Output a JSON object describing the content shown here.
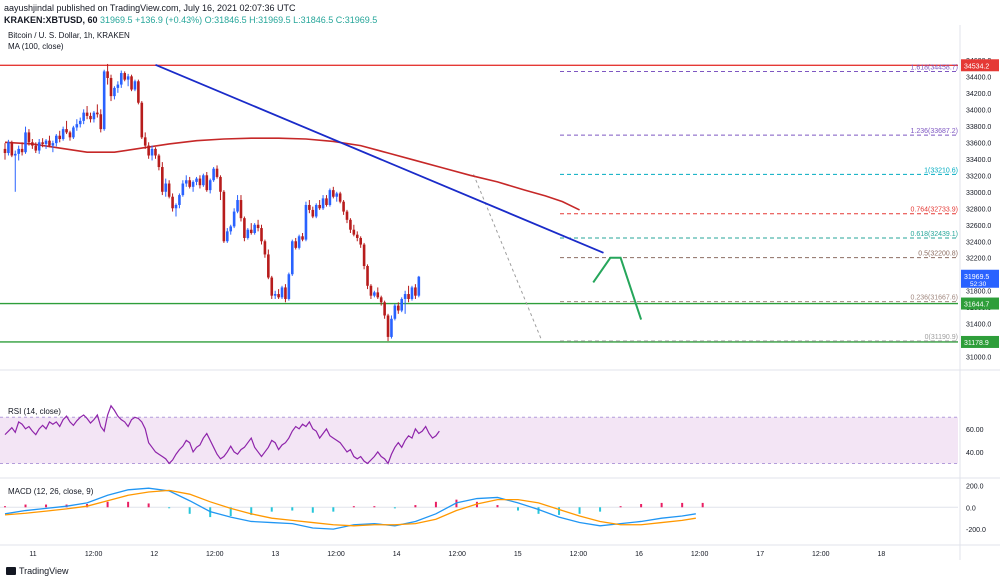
{
  "header": {
    "line1": "aayushjindal published on TradingView.com, July 16, 2021 02:07:36 UTC",
    "symbol": "KRAKEN:XBTUSD, 60",
    "change": "31969.5  +136.9 (+0.43%)  O:31846.5  H:31969.5  L:31846.5  C:31969.5"
  },
  "pane_labels": {
    "main": "Bitcoin / U. S. Dollar, 1h, KRAKEN",
    "ma": "MA (100, close)",
    "rsi": "RSI (14, close)",
    "macd": "MACD (12, 26, close, 9)"
  },
  "footer": {
    "brand": "TradingView"
  },
  "colors": {
    "up": "#2962ff",
    "down": "#b71c1c",
    "ma": "#c62828",
    "trend": "#1a2bc9",
    "support": "#2e9e3a",
    "resistance": "#e53935",
    "projection": "#26a65b",
    "rsi_line": "#8e24aa",
    "rsi_band": "#f3e5f5",
    "macd": "#2196f3",
    "signal": "#ff9800",
    "hist_pos": "#e91e63",
    "hist_neg": "#26c6da"
  },
  "chart_data": {
    "type": "candlestick",
    "price_axis": {
      "ylim": [
        30960,
        34780
      ],
      "ticks": [
        "34600.0",
        "34400.0",
        "34200.0",
        "34000.0",
        "33800.0",
        "33600.0",
        "33400.0",
        "33200.0",
        "33000.0",
        "32800.0",
        "32600.0",
        "32400.0",
        "32200.0",
        "32000.0",
        "31800.0",
        "31600.0",
        "31400.0",
        "31200.0",
        "31000.0"
      ]
    },
    "time_axis": [
      "11",
      "12:00",
      "12",
      "12:00",
      "13",
      "12:00",
      "14",
      "12:00",
      "15",
      "12:00",
      "16",
      "12:00",
      "17",
      "12:00",
      "18"
    ],
    "candles": [
      [
        33520,
        33590,
        33390,
        33470
      ],
      [
        33470,
        33630,
        33440,
        33600
      ],
      [
        33600,
        33620,
        33420,
        33440
      ],
      [
        33440,
        33500,
        33000,
        33460
      ],
      [
        33460,
        33560,
        33380,
        33520
      ],
      [
        33520,
        33600,
        33440,
        33480
      ],
      [
        33480,
        33790,
        33460,
        33720
      ],
      [
        33720,
        33760,
        33560,
        33600
      ],
      [
        33600,
        33640,
        33520,
        33560
      ],
      [
        33560,
        33600,
        33470,
        33500
      ],
      [
        33500,
        33640,
        33460,
        33600
      ],
      [
        33600,
        33650,
        33540,
        33580
      ],
      [
        33580,
        33640,
        33520,
        33620
      ],
      [
        33620,
        33680,
        33540,
        33560
      ],
      [
        33560,
        33620,
        33480,
        33590
      ],
      [
        33590,
        33700,
        33550,
        33680
      ],
      [
        33680,
        33740,
        33600,
        33640
      ],
      [
        33640,
        33790,
        33620,
        33760
      ],
      [
        33760,
        33860,
        33700,
        33720
      ],
      [
        33720,
        33740,
        33620,
        33660
      ],
      [
        33660,
        33800,
        33640,
        33780
      ],
      [
        33780,
        33880,
        33740,
        33820
      ],
      [
        33820,
        33900,
        33780,
        33860
      ],
      [
        33860,
        34000,
        33820,
        33960
      ],
      [
        33960,
        34040,
        33880,
        33920
      ],
      [
        33920,
        33960,
        33840,
        33880
      ],
      [
        33880,
        33980,
        33840,
        33960
      ],
      [
        33960,
        34060,
        33900,
        33940
      ],
      [
        33940,
        34000,
        33720,
        33760
      ],
      [
        33760,
        34480,
        33740,
        34460
      ],
      [
        34460,
        34550,
        34300,
        34380
      ],
      [
        34380,
        34420,
        34100,
        34160
      ],
      [
        34160,
        34280,
        34120,
        34260
      ],
      [
        34260,
        34340,
        34200,
        34300
      ],
      [
        34300,
        34470,
        34260,
        34440
      ],
      [
        34440,
        34460,
        34340,
        34360
      ],
      [
        34360,
        34430,
        34280,
        34400
      ],
      [
        34400,
        34420,
        34220,
        34240
      ],
      [
        34240,
        34360,
        34220,
        34340
      ],
      [
        34340,
        34360,
        34060,
        34080
      ],
      [
        34080,
        34100,
        33640,
        33660
      ],
      [
        33660,
        33720,
        33520,
        33560
      ],
      [
        33560,
        33600,
        33400,
        33440
      ],
      [
        33440,
        33560,
        33380,
        33520
      ],
      [
        33520,
        33540,
        33400,
        33440
      ],
      [
        33440,
        33460,
        33260,
        33300
      ],
      [
        33300,
        33360,
        32960,
        33000
      ],
      [
        33000,
        33160,
        32940,
        33100
      ],
      [
        33100,
        33140,
        32920,
        32940
      ],
      [
        32940,
        32980,
        32760,
        32800
      ],
      [
        32800,
        32860,
        32700,
        32840
      ],
      [
        32840,
        32980,
        32800,
        32960
      ],
      [
        32960,
        33140,
        32940,
        33100
      ],
      [
        33100,
        33200,
        33060,
        33140
      ],
      [
        33140,
        33180,
        33040,
        33060
      ],
      [
        33060,
        33140,
        33000,
        33120
      ],
      [
        33120,
        33180,
        33080,
        33160
      ],
      [
        33160,
        33200,
        33040,
        33080
      ],
      [
        33080,
        33220,
        33060,
        33200
      ],
      [
        33200,
        33240,
        33000,
        33020
      ],
      [
        33020,
        33160,
        32980,
        33140
      ],
      [
        33140,
        33300,
        33120,
        33280
      ],
      [
        33280,
        33320,
        33160,
        33180
      ],
      [
        33180,
        33200,
        32900,
        33000
      ],
      [
        33000,
        33020,
        32380,
        32400
      ],
      [
        32400,
        32560,
        32380,
        32520
      ],
      [
        32520,
        32600,
        32480,
        32580
      ],
      [
        32580,
        32800,
        32560,
        32760
      ],
      [
        32760,
        32960,
        32740,
        32900
      ],
      [
        32900,
        32960,
        32640,
        32680
      ],
      [
        32680,
        32700,
        32400,
        32440
      ],
      [
        32440,
        32560,
        32420,
        32540
      ],
      [
        32540,
        32620,
        32480,
        32500
      ],
      [
        32500,
        32620,
        32480,
        32600
      ],
      [
        32600,
        32660,
        32520,
        32560
      ],
      [
        32560,
        32600,
        32360,
        32400
      ],
      [
        32400,
        32420,
        32200,
        32240
      ],
      [
        32240,
        32300,
        31940,
        31960
      ],
      [
        31960,
        31980,
        31700,
        31740
      ],
      [
        31740,
        31800,
        31700,
        31760
      ],
      [
        31760,
        31820,
        31700,
        31720
      ],
      [
        31720,
        31860,
        31700,
        31840
      ],
      [
        31840,
        31880,
        31660,
        31700
      ],
      [
        31700,
        32020,
        31680,
        32000
      ],
      [
        32000,
        32420,
        31980,
        32400
      ],
      [
        32400,
        32440,
        32300,
        32320
      ],
      [
        32320,
        32480,
        32300,
        32460
      ],
      [
        32460,
        32500,
        32400,
        32420
      ],
      [
        32420,
        32880,
        32400,
        32840
      ],
      [
        32840,
        32900,
        32740,
        32780
      ],
      [
        32780,
        32820,
        32680,
        32700
      ],
      [
        32700,
        32860,
        32680,
        32840
      ],
      [
        32840,
        32900,
        32780,
        32800
      ],
      [
        32800,
        32960,
        32780,
        32920
      ],
      [
        32920,
        32960,
        32820,
        32840
      ],
      [
        32840,
        33040,
        32820,
        33020
      ],
      [
        33020,
        33060,
        32920,
        32940
      ],
      [
        32940,
        33000,
        32880,
        32980
      ],
      [
        32980,
        33000,
        32860,
        32880
      ],
      [
        32880,
        32900,
        32720,
        32760
      ],
      [
        32760,
        32780,
        32620,
        32660
      ],
      [
        32660,
        32680,
        32500,
        32540
      ],
      [
        32540,
        32600,
        32460,
        32480
      ],
      [
        32480,
        32520,
        32400,
        32440
      ],
      [
        32440,
        32460,
        32320,
        32360
      ],
      [
        32360,
        32380,
        32060,
        32100
      ],
      [
        32100,
        32120,
        31820,
        31860
      ],
      [
        31860,
        31880,
        31700,
        31740
      ],
      [
        31740,
        31800,
        31720,
        31780
      ],
      [
        31780,
        31840,
        31700,
        31720
      ],
      [
        31720,
        31740,
        31620,
        31660
      ],
      [
        31660,
        31680,
        31460,
        31500
      ],
      [
        31500,
        31520,
        31190,
        31240
      ],
      [
        31240,
        31500,
        31220,
        31460
      ],
      [
        31460,
        31640,
        31440,
        31620
      ],
      [
        31620,
        31660,
        31520,
        31560
      ],
      [
        31560,
        31720,
        31540,
        31700
      ],
      [
        31700,
        31800,
        31520,
        31760
      ],
      [
        31760,
        31860,
        31660,
        31700
      ],
      [
        31700,
        31860,
        31680,
        31840
      ],
      [
        31840,
        31880,
        31700,
        31740
      ],
      [
        31740,
        31980,
        31720,
        31970
      ]
    ],
    "ma100": [
      [
        0,
        33600
      ],
      [
        8,
        33580
      ],
      [
        16,
        33530
      ],
      [
        24,
        33480
      ],
      [
        32,
        33480
      ],
      [
        40,
        33530
      ],
      [
        48,
        33580
      ],
      [
        56,
        33620
      ],
      [
        64,
        33640
      ],
      [
        72,
        33650
      ],
      [
        80,
        33650
      ],
      [
        88,
        33640
      ],
      [
        96,
        33610
      ],
      [
        104,
        33560
      ],
      [
        112,
        33470
      ],
      [
        120,
        33380
      ],
      [
        128,
        33290
      ],
      [
        136,
        33200
      ],
      [
        144,
        33120
      ],
      [
        152,
        33020
      ],
      [
        158,
        32950
      ],
      [
        163,
        32880
      ],
      [
        168,
        32780
      ]
    ],
    "trend_line": {
      "from": [
        44,
        34540
      ],
      "to": [
        175,
        32260
      ]
    },
    "levels": [
      {
        "label": "34534.2",
        "value": 34534.2,
        "kind": "resistance"
      },
      {
        "label": "31644.7",
        "value": 31644.7,
        "kind": "support"
      },
      {
        "label": "31178.9",
        "value": 31178.9,
        "kind": "support"
      }
    ],
    "fib": [
      {
        "label": "1.618(34458.7)",
        "value": 34458.7
      },
      {
        "label": "1.236(33687.2)",
        "value": 33687.2
      },
      {
        "label": "1(33210.6)",
        "value": 33210.6
      },
      {
        "label": "0.764(32733.9)",
        "value": 32733.9
      },
      {
        "label": "0.618(32439.1)",
        "value": 32439.1
      },
      {
        "label": "0.5(32200.8)",
        "value": 32200.8
      },
      {
        "label": "0.236(31667.6)",
        "value": 31667.6
      },
      {
        "label": "0(31190.9)",
        "value": 31190.9
      }
    ],
    "fib_anchor": {
      "from": [
        137,
        33210.6
      ],
      "to": [
        157,
        31190.9
      ]
    },
    "last_price": {
      "label": "31969.5",
      "countdown": "52:30",
      "value": 31969.5
    },
    "projection": [
      [
        172,
        31900
      ],
      [
        177,
        32200
      ],
      [
        180,
        32200
      ],
      [
        186,
        31450
      ]
    ],
    "rsi": {
      "ticks": [
        "60.00",
        "40.00"
      ],
      "band": [
        30,
        70
      ],
      "values": [
        55,
        58,
        61,
        57,
        66,
        64,
        60,
        62,
        58,
        55,
        60,
        63,
        60,
        66,
        64,
        66,
        62,
        68,
        71,
        66,
        63,
        67,
        70,
        72,
        69,
        65,
        68,
        72,
        62,
        58,
        72,
        80,
        76,
        71,
        68,
        66,
        62,
        68,
        70,
        69,
        66,
        60,
        48,
        44,
        40,
        38,
        36,
        34,
        30,
        33,
        38,
        42,
        45,
        50,
        48,
        40,
        44,
        46,
        52,
        56,
        50,
        44,
        38,
        34,
        36,
        40,
        45,
        40,
        38,
        42,
        44,
        48,
        52,
        44,
        40,
        36,
        40,
        44,
        50,
        48,
        42,
        46,
        48,
        52,
        58,
        62,
        60,
        64,
        62,
        66,
        60,
        58,
        52,
        56,
        60,
        54,
        52,
        50,
        48,
        44,
        40,
        42,
        36,
        34,
        36,
        32,
        30,
        33,
        36,
        40,
        36,
        34,
        30,
        38,
        44,
        48,
        44,
        50,
        54,
        52,
        60,
        56,
        58,
        62,
        56,
        52,
        54,
        58
      ]
    },
    "macd": {
      "ticks": [
        "200.0",
        "0.0",
        "-200.0"
      ],
      "ylim": [
        -300,
        250
      ],
      "macd_line": [
        [
          0,
          -60
        ],
        [
          6,
          -30
        ],
        [
          12,
          -10
        ],
        [
          18,
          10
        ],
        [
          24,
          40
        ],
        [
          30,
          110
        ],
        [
          36,
          160
        ],
        [
          42,
          175
        ],
        [
          48,
          150
        ],
        [
          54,
          60
        ],
        [
          60,
          -40
        ],
        [
          66,
          -90
        ],
        [
          72,
          -130
        ],
        [
          78,
          -140
        ],
        [
          84,
          -150
        ],
        [
          90,
          -190
        ],
        [
          96,
          -200
        ],
        [
          102,
          -160
        ],
        [
          108,
          -150
        ],
        [
          114,
          -170
        ],
        [
          120,
          -130
        ],
        [
          126,
          -60
        ],
        [
          132,
          40
        ],
        [
          138,
          80
        ],
        [
          144,
          90
        ],
        [
          150,
          40
        ],
        [
          156,
          -20
        ],
        [
          162,
          -90
        ],
        [
          168,
          -140
        ],
        [
          174,
          -170
        ],
        [
          180,
          -150
        ],
        [
          186,
          -130
        ],
        [
          192,
          -100
        ],
        [
          198,
          -80
        ],
        [
          202,
          -60
        ]
      ],
      "signal_line": [
        [
          0,
          -70
        ],
        [
          6,
          -55
        ],
        [
          12,
          -35
        ],
        [
          18,
          -15
        ],
        [
          24,
          10
        ],
        [
          30,
          60
        ],
        [
          36,
          110
        ],
        [
          42,
          140
        ],
        [
          48,
          155
        ],
        [
          54,
          120
        ],
        [
          60,
          50
        ],
        [
          66,
          -10
        ],
        [
          72,
          -60
        ],
        [
          78,
          -100
        ],
        [
          84,
          -120
        ],
        [
          90,
          -140
        ],
        [
          96,
          -160
        ],
        [
          102,
          -170
        ],
        [
          108,
          -160
        ],
        [
          114,
          -160
        ],
        [
          120,
          -150
        ],
        [
          126,
          -110
        ],
        [
          132,
          -30
        ],
        [
          138,
          30
        ],
        [
          144,
          70
        ],
        [
          150,
          70
        ],
        [
          156,
          40
        ],
        [
          162,
          -20
        ],
        [
          168,
          -80
        ],
        [
          174,
          -130
        ],
        [
          180,
          -160
        ],
        [
          186,
          -160
        ],
        [
          192,
          -140
        ],
        [
          198,
          -120
        ],
        [
          202,
          -100
        ]
      ],
      "hist": [
        10,
        25,
        25,
        25,
        30,
        50,
        50,
        35,
        -5,
        -60,
        -90,
        -80,
        -70,
        -40,
        -30,
        -50,
        -40,
        10,
        10,
        -10,
        20,
        50,
        70,
        50,
        20,
        -30,
        -60,
        -70,
        -60,
        -40,
        10,
        30,
        40,
        40,
        40
      ]
    }
  }
}
